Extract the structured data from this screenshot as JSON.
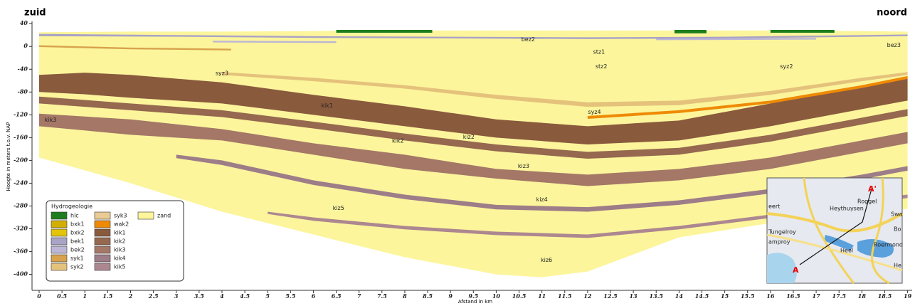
{
  "chart_data": {
    "type": "cross-section",
    "left_label": "zuid",
    "right_label": "noord",
    "ylabel": "Hoogte in meters t.o.v. NAP",
    "xlabel": "Afstand in km",
    "legend_title": "Hydrogeologie",
    "xlim": [
      0,
      19.1
    ],
    "ylim": [
      -428,
      44
    ],
    "xticks": [
      0,
      0.5,
      1,
      1.5,
      2,
      2.5,
      3,
      3.5,
      4,
      4.5,
      5,
      5.5,
      6,
      6.5,
      7,
      7.5,
      8,
      8.5,
      9,
      9.5,
      10,
      10.5,
      11,
      11.5,
      12,
      12.5,
      13,
      13.5,
      14,
      14.5,
      15,
      15.5,
      16,
      16.5,
      17,
      17.5,
      18,
      18.5,
      19
    ],
    "yticks": [
      40,
      0,
      -40,
      -80,
      -120,
      -160,
      -200,
      -240,
      -280,
      -320,
      -360,
      -400
    ],
    "series": [
      {
        "name": "hlc",
        "color": "#1e7d1e",
        "x": [
          6.5,
          8.6,
          null,
          13.9,
          14.6,
          null,
          16.0,
          17.4
        ],
        "top": [
          29,
          29,
          null,
          29,
          29,
          null,
          29,
          29
        ],
        "bottom": [
          24,
          24,
          null,
          23,
          23,
          null,
          24,
          24
        ]
      },
      {
        "name": "bxk1",
        "color": "#d2ae00"
      },
      {
        "name": "bxk2",
        "color": "#e3c40a"
      },
      {
        "name": "bek1",
        "color": "#a9a3c6",
        "x": [
          0,
          3,
          6,
          9,
          12,
          15,
          18,
          19
        ],
        "top": [
          22,
          20,
          18,
          17,
          16,
          17,
          20,
          21
        ],
        "bottom": [
          18,
          17,
          15,
          14,
          13,
          14,
          17,
          18
        ]
      },
      {
        "name": "bek2",
        "color": "#bdb6d6",
        "x": [
          3.8,
          6.5,
          null,
          13.5,
          17
        ],
        "top": [
          10,
          9,
          null,
          14,
          15
        ],
        "bottom": [
          7,
          6,
          null,
          11,
          12
        ]
      },
      {
        "name": "syk1",
        "color": "#d8a24c",
        "x": [
          0,
          2,
          4.2
        ],
        "top": [
          2,
          -2,
          -4
        ],
        "bottom": [
          -1,
          -5,
          -7
        ]
      },
      {
        "name": "syk2",
        "color": "#e5c27c",
        "x": [
          4,
          6,
          8,
          10,
          12,
          14,
          16,
          18,
          19
        ],
        "top": [
          -45,
          -55,
          -68,
          -85,
          -98,
          -95,
          -78,
          -55,
          -45
        ],
        "bottom": [
          -50,
          -61,
          -74,
          -92,
          -106,
          -103,
          -85,
          -61,
          -50
        ]
      },
      {
        "name": "syk3",
        "color": "#ebcb94"
      },
      {
        "name": "wak2",
        "color": "#ee8a06",
        "x": [
          12,
          14,
          16,
          18,
          19
        ],
        "top": [
          -122,
          -112,
          -95,
          -68,
          -52
        ],
        "bottom": [
          -127,
          -117,
          -100,
          -73,
          -57
        ]
      },
      {
        "name": "kik1",
        "color": "#8a5a3d",
        "x": [
          0,
          1,
          2,
          4,
          6,
          8,
          10,
          12,
          14,
          16,
          18,
          19
        ],
        "top": [
          -50,
          -46,
          -50,
          -63,
          -85,
          -105,
          -128,
          -140,
          -130,
          -100,
          -70,
          -55
        ],
        "bottom": [
          -80,
          -84,
          -90,
          -100,
          -120,
          -140,
          -160,
          -172,
          -165,
          -140,
          -110,
          -95
        ]
      },
      {
        "name": "kik2",
        "color": "#96684f",
        "x": [
          0,
          2,
          4,
          6,
          8,
          10,
          12,
          14,
          16,
          18,
          19
        ],
        "top": [
          -88,
          -100,
          -112,
          -132,
          -153,
          -172,
          -185,
          -178,
          -155,
          -125,
          -110
        ],
        "bottom": [
          -100,
          -112,
          -124,
          -144,
          -165,
          -184,
          -197,
          -190,
          -167,
          -137,
          -122
        ]
      },
      {
        "name": "kik3",
        "color": "#a47767",
        "x": [
          0,
          2,
          4,
          6,
          8,
          10,
          12,
          14,
          16,
          18,
          19
        ],
        "top": [
          -118,
          -128,
          -145,
          -170,
          -190,
          -215,
          -225,
          -215,
          -195,
          -165,
          -150
        ],
        "bottom": [
          -140,
          -155,
          -165,
          -190,
          -215,
          -232,
          -245,
          -235,
          -215,
          -185,
          -170
        ]
      },
      {
        "name": "kik4",
        "color": "#9d7d88",
        "x": [
          3,
          4,
          6,
          8,
          10,
          12,
          14,
          16,
          18,
          19
        ],
        "top": [
          -190,
          -200,
          -235,
          -260,
          -278,
          -282,
          -270,
          -250,
          -225,
          -210
        ],
        "bottom": [
          -196,
          -208,
          -243,
          -268,
          -286,
          -290,
          -278,
          -258,
          -233,
          -218
        ]
      },
      {
        "name": "kik5",
        "color": "#ad8790",
        "x": [
          5,
          6,
          8,
          10,
          12,
          14,
          16,
          18,
          19
        ],
        "top": [
          -290,
          -300,
          -315,
          -325,
          -330,
          -315,
          -295,
          -270,
          -260
        ],
        "bottom": [
          -294,
          -306,
          -321,
          -331,
          -336,
          -321,
          -301,
          -276,
          -266
        ]
      },
      {
        "name": "zand",
        "color": "#fcf59c",
        "x": [
          0,
          2,
          4,
          6,
          8,
          10,
          11,
          12,
          14,
          16,
          18,
          19
        ],
        "top": [
          25,
          26,
          26,
          27,
          28,
          28,
          28,
          28,
          28,
          28,
          27,
          26
        ],
        "bottom": [
          -195,
          -240,
          -290,
          -330,
          -370,
          -400,
          -405,
          -395,
          -335,
          -310,
          -290,
          -285
        ]
      }
    ],
    "annotations": [
      {
        "text": "bez2",
        "x": 10.7,
        "y": 12
      },
      {
        "text": "stz1",
        "x": 12.25,
        "y": -10
      },
      {
        "text": "stz2",
        "x": 12.3,
        "y": -35
      },
      {
        "text": "syz3",
        "x": 4.0,
        "y": -47
      },
      {
        "text": "syz2",
        "x": 16.35,
        "y": -35
      },
      {
        "text": "bez3",
        "x": 18.7,
        "y": 2
      },
      {
        "text": "kik1",
        "x": 6.3,
        "y": -104
      },
      {
        "text": "syz4",
        "x": 12.15,
        "y": -115
      },
      {
        "text": "kik3",
        "x": 0.25,
        "y": -129
      },
      {
        "text": "kik2",
        "x": 7.85,
        "y": -166
      },
      {
        "text": "kiz2",
        "x": 9.4,
        "y": -159
      },
      {
        "text": "kiz3",
        "x": 10.6,
        "y": -210
      },
      {
        "text": "kiz4",
        "x": 11.0,
        "y": -269
      },
      {
        "text": "kiz5",
        "x": 6.55,
        "y": -284
      },
      {
        "text": "kiz6",
        "x": 11.1,
        "y": -375
      }
    ]
  },
  "inset_map": {
    "labels": [
      "A",
      "A'",
      "Roggel",
      "Heythuysen",
      "Tungelroy",
      "amproy",
      "Heel",
      "Roermond",
      "eert",
      "Swa",
      "Bo",
      "He"
    ]
  }
}
